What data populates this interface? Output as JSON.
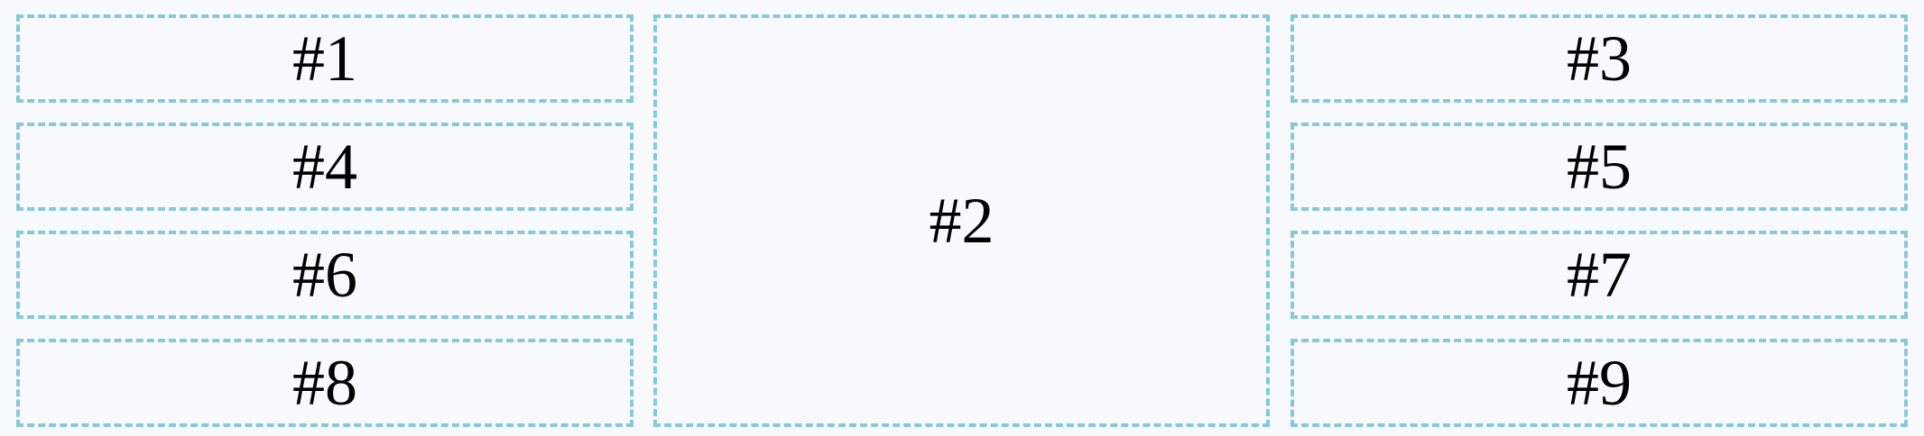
{
  "grid": {
    "colors": {
      "background": "#f7f9fc",
      "border": "#86cad8",
      "text": "#000000"
    },
    "boxes": {
      "b1": "#1",
      "b2": "#2",
      "b3": "#3",
      "b4": "#4",
      "b5": "#5",
      "b6": "#6",
      "b7": "#7",
      "b8": "#8",
      "b9": "#9"
    }
  }
}
